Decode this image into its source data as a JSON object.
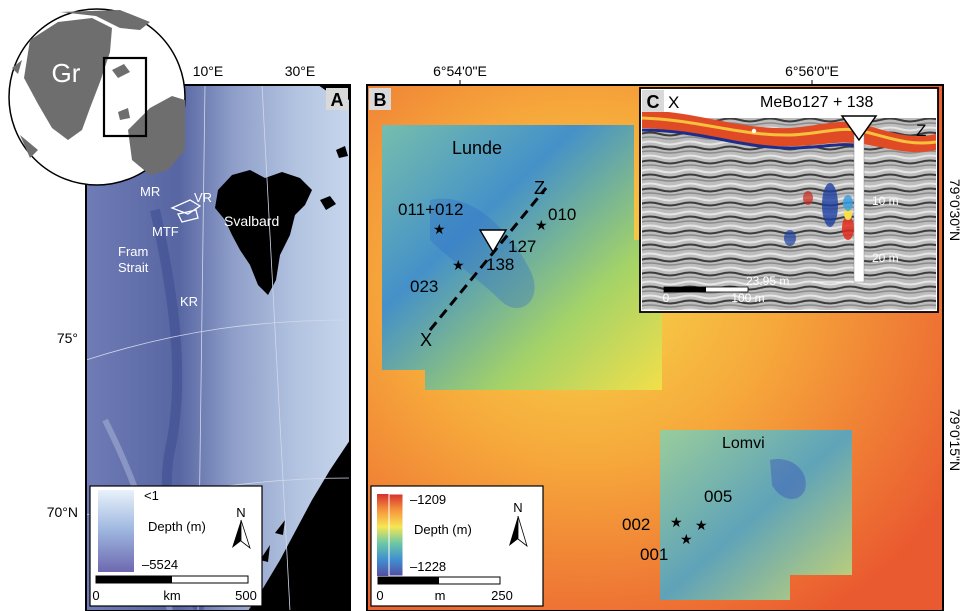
{
  "panel_a": {
    "letter": "A",
    "lon_labels": [
      "10°E",
      "30°E"
    ],
    "lat_labels": [
      "75°",
      "70°N"
    ],
    "inset_label": "Gr",
    "place_labels": {
      "mr": "MR",
      "vr": "VR",
      "mtf": "MTF",
      "svalbard": "Svalbard",
      "fram1": "Fram",
      "fram2": "Strait",
      "kr": "KR"
    },
    "legend": {
      "max": "<1",
      "title": "Depth (m)",
      "min": "–5524",
      "north": "N",
      "scale_start": "0",
      "scale_unit": "km",
      "scale_end": "500"
    }
  },
  "panel_b": {
    "letter": "B",
    "lon_labels": [
      "6°54'0\"E",
      "6°56'0\"E"
    ],
    "lat_labels": [
      "79°0'30\"N",
      "79°0'15\"N"
    ],
    "site_labels": {
      "lunde": "Lunde",
      "lomvi": "Lomvi",
      "s011": "011+012",
      "s010": "010",
      "s127": "127",
      "s138": "138",
      "s023": "023",
      "s005": "005",
      "s002": "002",
      "s001": "001",
      "x": "X",
      "z": "Z"
    },
    "legend": {
      "max": "–1209",
      "title": "Depth (m)",
      "min": "–1228",
      "north": "N",
      "scale_start": "0",
      "scale_unit": "m",
      "scale_end": "250"
    }
  },
  "panel_c": {
    "letter": "C",
    "x": "X",
    "z": "Z",
    "title": "MeBo127 + 138",
    "depth_10": "10 m",
    "depth_20": "20 m",
    "core_length": "23.95 m",
    "scale_start": "0",
    "scale_end": "100 m"
  },
  "colors": {
    "land": "#000000",
    "ocean_deep": "#5c6aa8",
    "ocean_shallow": "#c4d4ea",
    "depth_high": "#d8463a",
    "depth_low": "#4d55a4"
  }
}
